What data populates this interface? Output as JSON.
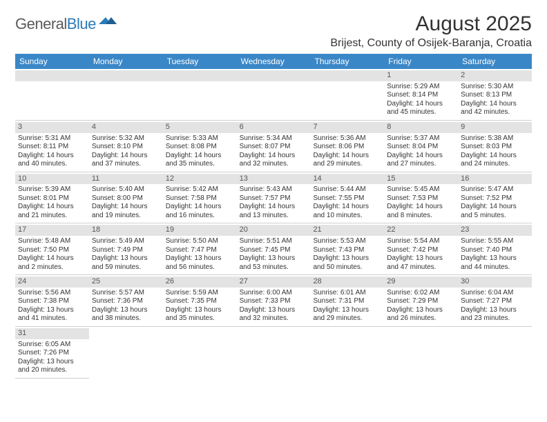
{
  "logo": {
    "text1": "General",
    "text2": "Blue"
  },
  "title": "August 2025",
  "location": "Brijest, County of Osijek-Baranja, Croatia",
  "colors": {
    "header_bg": "#3a87c7",
    "header_text": "#ffffff",
    "daynum_bg": "#e3e3e3",
    "cell_border": "#cfcfcf",
    "text": "#333333",
    "logo_gray": "#5a5a5a",
    "logo_blue": "#2a7ab9"
  },
  "daysOfWeek": [
    "Sunday",
    "Monday",
    "Tuesday",
    "Wednesday",
    "Thursday",
    "Friday",
    "Saturday"
  ],
  "firstDayIndex": 5,
  "daysInMonth": 31,
  "days": {
    "1": {
      "sunrise": "5:29 AM",
      "sunset": "8:14 PM",
      "daylight": "14 hours and 45 minutes."
    },
    "2": {
      "sunrise": "5:30 AM",
      "sunset": "8:13 PM",
      "daylight": "14 hours and 42 minutes."
    },
    "3": {
      "sunrise": "5:31 AM",
      "sunset": "8:11 PM",
      "daylight": "14 hours and 40 minutes."
    },
    "4": {
      "sunrise": "5:32 AM",
      "sunset": "8:10 PM",
      "daylight": "14 hours and 37 minutes."
    },
    "5": {
      "sunrise": "5:33 AM",
      "sunset": "8:08 PM",
      "daylight": "14 hours and 35 minutes."
    },
    "6": {
      "sunrise": "5:34 AM",
      "sunset": "8:07 PM",
      "daylight": "14 hours and 32 minutes."
    },
    "7": {
      "sunrise": "5:36 AM",
      "sunset": "8:06 PM",
      "daylight": "14 hours and 29 minutes."
    },
    "8": {
      "sunrise": "5:37 AM",
      "sunset": "8:04 PM",
      "daylight": "14 hours and 27 minutes."
    },
    "9": {
      "sunrise": "5:38 AM",
      "sunset": "8:03 PM",
      "daylight": "14 hours and 24 minutes."
    },
    "10": {
      "sunrise": "5:39 AM",
      "sunset": "8:01 PM",
      "daylight": "14 hours and 21 minutes."
    },
    "11": {
      "sunrise": "5:40 AM",
      "sunset": "8:00 PM",
      "daylight": "14 hours and 19 minutes."
    },
    "12": {
      "sunrise": "5:42 AM",
      "sunset": "7:58 PM",
      "daylight": "14 hours and 16 minutes."
    },
    "13": {
      "sunrise": "5:43 AM",
      "sunset": "7:57 PM",
      "daylight": "14 hours and 13 minutes."
    },
    "14": {
      "sunrise": "5:44 AM",
      "sunset": "7:55 PM",
      "daylight": "14 hours and 10 minutes."
    },
    "15": {
      "sunrise": "5:45 AM",
      "sunset": "7:53 PM",
      "daylight": "14 hours and 8 minutes."
    },
    "16": {
      "sunrise": "5:47 AM",
      "sunset": "7:52 PM",
      "daylight": "14 hours and 5 minutes."
    },
    "17": {
      "sunrise": "5:48 AM",
      "sunset": "7:50 PM",
      "daylight": "14 hours and 2 minutes."
    },
    "18": {
      "sunrise": "5:49 AM",
      "sunset": "7:49 PM",
      "daylight": "13 hours and 59 minutes."
    },
    "19": {
      "sunrise": "5:50 AM",
      "sunset": "7:47 PM",
      "daylight": "13 hours and 56 minutes."
    },
    "20": {
      "sunrise": "5:51 AM",
      "sunset": "7:45 PM",
      "daylight": "13 hours and 53 minutes."
    },
    "21": {
      "sunrise": "5:53 AM",
      "sunset": "7:43 PM",
      "daylight": "13 hours and 50 minutes."
    },
    "22": {
      "sunrise": "5:54 AM",
      "sunset": "7:42 PM",
      "daylight": "13 hours and 47 minutes."
    },
    "23": {
      "sunrise": "5:55 AM",
      "sunset": "7:40 PM",
      "daylight": "13 hours and 44 minutes."
    },
    "24": {
      "sunrise": "5:56 AM",
      "sunset": "7:38 PM",
      "daylight": "13 hours and 41 minutes."
    },
    "25": {
      "sunrise": "5:57 AM",
      "sunset": "7:36 PM",
      "daylight": "13 hours and 38 minutes."
    },
    "26": {
      "sunrise": "5:59 AM",
      "sunset": "7:35 PM",
      "daylight": "13 hours and 35 minutes."
    },
    "27": {
      "sunrise": "6:00 AM",
      "sunset": "7:33 PM",
      "daylight": "13 hours and 32 minutes."
    },
    "28": {
      "sunrise": "6:01 AM",
      "sunset": "7:31 PM",
      "daylight": "13 hours and 29 minutes."
    },
    "29": {
      "sunrise": "6:02 AM",
      "sunset": "7:29 PM",
      "daylight": "13 hours and 26 minutes."
    },
    "30": {
      "sunrise": "6:04 AM",
      "sunset": "7:27 PM",
      "daylight": "13 hours and 23 minutes."
    },
    "31": {
      "sunrise": "6:05 AM",
      "sunset": "7:26 PM",
      "daylight": "13 hours and 20 minutes."
    }
  },
  "labels": {
    "sunrise": "Sunrise:",
    "sunset": "Sunset:",
    "daylight": "Daylight:"
  }
}
